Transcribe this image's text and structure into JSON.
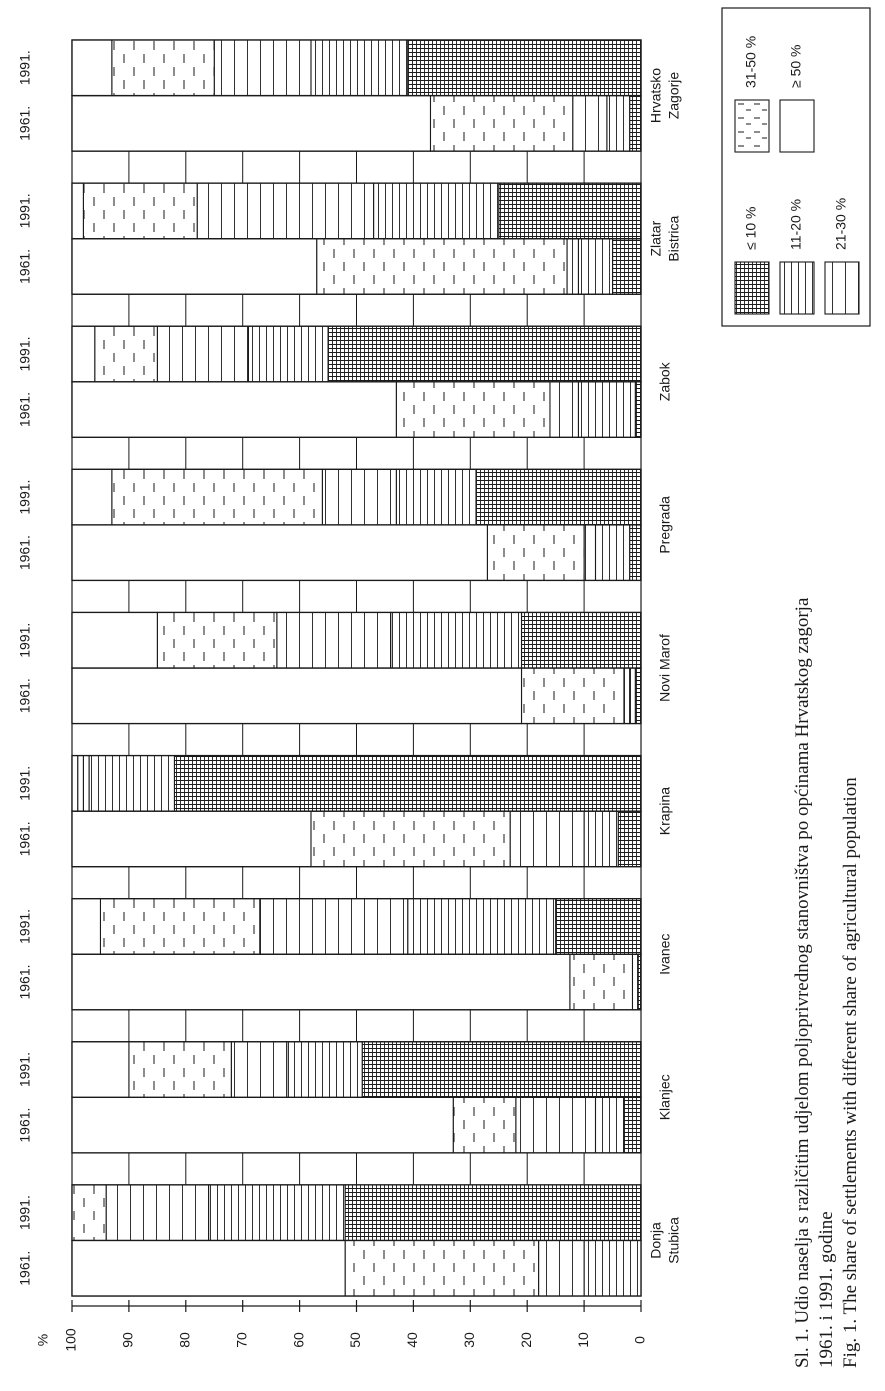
{
  "chart_data": {
    "type": "bar",
    "stacked": true,
    "orientation": "horizontal",
    "axis_unit": "%",
    "xlim": [
      0,
      100
    ],
    "x_ticks": [
      "0",
      "10",
      "20",
      "30",
      "40",
      "50",
      "60",
      "70",
      "80",
      "90",
      "100"
    ],
    "categories": [
      {
        "name": "Donja Stubica",
        "name_lines": [
          "Donja",
          "Stubica"
        ]
      },
      {
        "name": "Klanjec",
        "name_lines": [
          "Klanjec"
        ]
      },
      {
        "name": "Ivanec",
        "name_lines": [
          "Ivanec"
        ]
      },
      {
        "name": "Krapina",
        "name_lines": [
          "Krapina"
        ]
      },
      {
        "name": "Novi Marof",
        "name_lines": [
          "Novi Marof"
        ]
      },
      {
        "name": "Pregrada",
        "name_lines": [
          "Pregrada"
        ]
      },
      {
        "name": "Zabok",
        "name_lines": [
          "Zabok"
        ]
      },
      {
        "name": "Zlatar Bistrica",
        "name_lines": [
          "Zlatar",
          "Bistrica"
        ]
      },
      {
        "name": "Hrvatsko Zagorje",
        "name_lines": [
          "Hrvatsko",
          "Zagorje"
        ]
      }
    ],
    "years": [
      "1961.",
      "1991."
    ],
    "legend": [
      {
        "label": "≤ 10 %",
        "pattern": "cross"
      },
      {
        "label": "11-20 %",
        "pattern": "dense-h"
      },
      {
        "label": "21-30 %",
        "pattern": "sparse-h"
      },
      {
        "label": "31-50 %",
        "pattern": "dashes"
      },
      {
        "label": "≥ 50 %",
        "pattern": "blank"
      }
    ],
    "series_order_from_zero": [
      "≤ 10 %",
      "11-20 %",
      "21-30 %",
      "31-50 %",
      "≥ 50 %"
    ],
    "data": [
      {
        "category": "Donja Stubica",
        "1961.": [
          0,
          10,
          8,
          34,
          48
        ],
        "1991.": [
          52,
          24,
          18,
          6,
          0
        ]
      },
      {
        "category": "Klanjec",
        "1961.": [
          3,
          5,
          14,
          11,
          67
        ],
        "1991.": [
          49,
          13,
          10,
          18,
          10
        ]
      },
      {
        "category": "Ivanec",
        "1961.": [
          0.5,
          1,
          0,
          11,
          87.5
        ],
        "1991.": [
          15,
          26,
          26,
          28,
          5
        ]
      },
      {
        "category": "Krapina",
        "1961.": [
          4,
          6,
          13,
          35,
          42
        ],
        "1991.": [
          82,
          15,
          1,
          1,
          1
        ]
      },
      {
        "category": "Novi Marof",
        "1961.": [
          1,
          1,
          1,
          18,
          79
        ],
        "1991.": [
          21,
          23,
          20,
          21,
          15
        ]
      },
      {
        "category": "Pregrada",
        "1961.": [
          2,
          6,
          2,
          17,
          73
        ],
        "1991.": [
          29,
          14,
          13,
          37,
          7
        ]
      },
      {
        "category": "Zabok",
        "1961.": [
          1,
          10,
          5,
          27,
          57
        ],
        "1991.": [
          55,
          14,
          16,
          11,
          4
        ]
      },
      {
        "category": "Zlatar Bistrica",
        "1961.": [
          5,
          6,
          2,
          44,
          43
        ],
        "1991.": [
          25,
          22,
          31,
          20,
          2
        ]
      },
      {
        "category": "Hrvatsko Zagorje",
        "1961.": [
          2,
          4,
          6,
          25,
          63
        ],
        "1991.": [
          41,
          17,
          17,
          18,
          7
        ]
      }
    ]
  },
  "legend_texts": [
    "≤ 10 %",
    "11-20 %",
    "21-30 %",
    "31-50 %",
    "≥ 50 %"
  ],
  "caption": {
    "line1": "Sl. 1. Udio naselja s različitim udjelom poljoprivrednog stanovništva po općinama Hrvatskog zagorja",
    "line2": "1961. i 1991. godine",
    "line3": "Fig. 1. The share of settlements with different share of agricultural population"
  },
  "colors": {
    "ink": "#1a1a1a",
    "paper": "#ffffff"
  }
}
